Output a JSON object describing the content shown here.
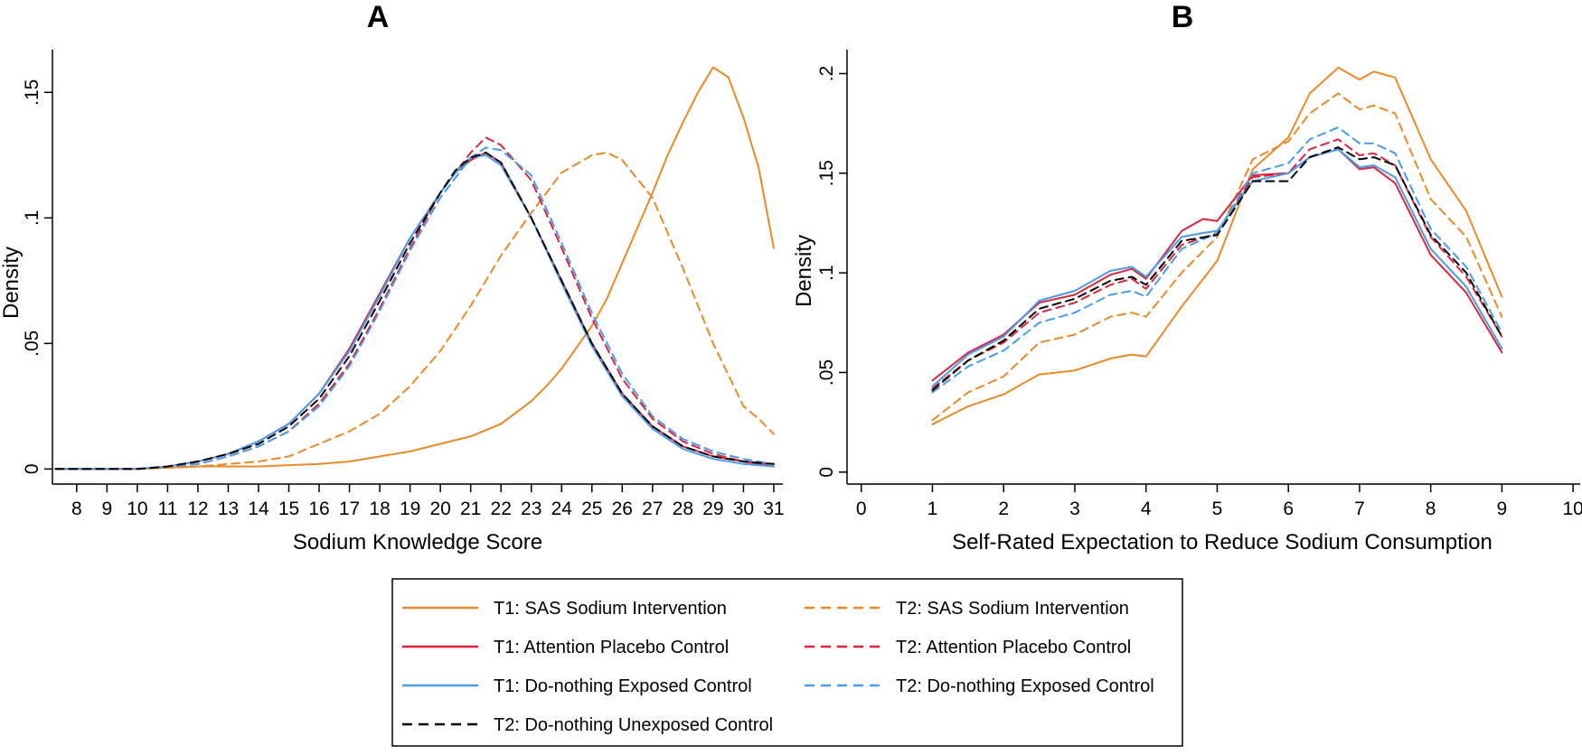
{
  "colors": {
    "sas": "#e8892a",
    "placebo": "#d7263d",
    "exposed": "#4a9be8",
    "unexposed": "#000000"
  },
  "legend": {
    "items": [
      {
        "label": "T1: SAS Sodium Intervention",
        "color": "#e8892a",
        "dash": "solid"
      },
      {
        "label": "T2: SAS Sodium Intervention",
        "color": "#e8892a",
        "dash": "dashed"
      },
      {
        "label": "T1: Attention Placebo Control",
        "color": "#d7263d",
        "dash": "solid"
      },
      {
        "label": "T2: Attention Placebo Control",
        "color": "#d7263d",
        "dash": "dashed"
      },
      {
        "label": "T1: Do-nothing Exposed Control",
        "color": "#4a9be8",
        "dash": "solid"
      },
      {
        "label": "T2: Do-nothing Exposed Control",
        "color": "#4a9be8",
        "dash": "dashed"
      },
      {
        "label": "T2: Do-nothing Unexposed Control",
        "color": "#000000",
        "dash": "dashed"
      }
    ]
  },
  "chart_data": [
    {
      "panel": "A",
      "type": "line",
      "title": "A",
      "xlabel": "Sodium Knowledge Score",
      "ylabel": "Density",
      "xlim": [
        7.2,
        31.3
      ],
      "ylim": [
        -0.006,
        0.167
      ],
      "xticks": [
        8,
        9,
        10,
        11,
        12,
        13,
        14,
        15,
        16,
        17,
        18,
        19,
        20,
        21,
        22,
        23,
        24,
        25,
        26,
        27,
        28,
        29,
        30,
        31
      ],
      "yticks": [
        0,
        0.05,
        0.1,
        0.15
      ],
      "ytick_labels": [
        "0",
        ".05",
        ".1",
        ".15"
      ],
      "series": [
        {
          "name": "T1: SAS Sodium Intervention",
          "color": "#e8892a",
          "dash": "solid",
          "x": [
            7.3,
            10,
            12,
            14,
            16,
            17,
            18,
            19,
            20,
            21,
            22,
            23,
            23.5,
            24,
            25,
            25.5,
            26,
            27,
            27.5,
            28,
            28.5,
            29,
            29.5,
            30,
            30.5,
            31
          ],
          "y": [
            0,
            0,
            0.001,
            0.001,
            0.002,
            0.003,
            0.005,
            0.007,
            0.01,
            0.013,
            0.018,
            0.027,
            0.033,
            0.04,
            0.057,
            0.068,
            0.082,
            0.11,
            0.125,
            0.138,
            0.15,
            0.16,
            0.156,
            0.14,
            0.12,
            0.088
          ]
        },
        {
          "name": "T2: SAS Sodium Intervention",
          "color": "#e8892a",
          "dash": "dashed",
          "x": [
            7.3,
            10,
            12,
            13,
            14,
            15,
            16,
            17,
            18,
            19,
            20,
            21,
            22,
            23,
            24,
            25,
            25.5,
            26,
            27,
            28,
            29,
            30,
            30.5,
            31
          ],
          "y": [
            0,
            0,
            0.001,
            0.002,
            0.003,
            0.005,
            0.01,
            0.015,
            0.022,
            0.033,
            0.047,
            0.065,
            0.085,
            0.102,
            0.118,
            0.125,
            0.126,
            0.123,
            0.108,
            0.08,
            0.05,
            0.025,
            0.02,
            0.014
          ]
        },
        {
          "name": "T1: Attention Placebo Control",
          "color": "#d7263d",
          "dash": "solid",
          "x": [
            7.3,
            10,
            11,
            12,
            13,
            14,
            15,
            16,
            17,
            18,
            19,
            20,
            20.5,
            21,
            21.5,
            22,
            23,
            24,
            25,
            26,
            27,
            28,
            29,
            30,
            31
          ],
          "y": [
            0,
            0,
            0.001,
            0.003,
            0.006,
            0.011,
            0.018,
            0.03,
            0.048,
            0.07,
            0.092,
            0.11,
            0.118,
            0.123,
            0.126,
            0.122,
            0.1,
            0.075,
            0.05,
            0.03,
            0.017,
            0.009,
            0.005,
            0.003,
            0.001
          ]
        },
        {
          "name": "T2: Attention Placebo Control",
          "color": "#d7263d",
          "dash": "dashed",
          "x": [
            7.3,
            10,
            11,
            12,
            13,
            14,
            15,
            16,
            17,
            18,
            19,
            20,
            21,
            21.5,
            22,
            23,
            24,
            25,
            26,
            27,
            28,
            29,
            30,
            31
          ],
          "y": [
            0,
            0,
            0.001,
            0.002,
            0.005,
            0.009,
            0.015,
            0.026,
            0.042,
            0.064,
            0.088,
            0.11,
            0.126,
            0.132,
            0.129,
            0.115,
            0.088,
            0.06,
            0.036,
            0.02,
            0.011,
            0.006,
            0.003,
            0.002
          ]
        },
        {
          "name": "T1: Do-nothing Exposed Control",
          "color": "#4a9be8",
          "dash": "solid",
          "x": [
            7.3,
            10,
            11,
            12,
            13,
            14,
            15,
            16,
            17,
            18,
            19,
            20,
            20.5,
            21,
            21.5,
            22,
            23,
            24,
            25,
            26,
            27,
            28,
            29,
            30,
            31
          ],
          "y": [
            0,
            0,
            0.001,
            0.003,
            0.006,
            0.011,
            0.018,
            0.03,
            0.047,
            0.069,
            0.092,
            0.11,
            0.118,
            0.124,
            0.125,
            0.121,
            0.1,
            0.074,
            0.049,
            0.029,
            0.016,
            0.008,
            0.004,
            0.002,
            0.001
          ]
        },
        {
          "name": "T2: Do-nothing Exposed Control",
          "color": "#4a9be8",
          "dash": "dashed",
          "x": [
            7.3,
            10,
            11,
            12,
            13,
            14,
            15,
            16,
            17,
            18,
            19,
            20,
            21,
            21.5,
            22,
            23,
            24,
            25,
            26,
            27,
            28,
            29,
            30,
            31
          ],
          "y": [
            0,
            0,
            0.001,
            0.002,
            0.005,
            0.009,
            0.015,
            0.025,
            0.041,
            0.063,
            0.087,
            0.108,
            0.124,
            0.128,
            0.127,
            0.117,
            0.09,
            0.062,
            0.038,
            0.021,
            0.012,
            0.007,
            0.004,
            0.002
          ]
        },
        {
          "name": "T2: Do-nothing Unexposed Control",
          "color": "#000000",
          "dash": "dashed",
          "x": [
            7.3,
            10,
            11,
            12,
            13,
            14,
            15,
            16,
            17,
            18,
            19,
            20,
            20.5,
            21,
            21.5,
            22,
            23,
            24,
            25,
            26,
            27,
            28,
            29,
            30,
            31
          ],
          "y": [
            0,
            0,
            0.001,
            0.003,
            0.006,
            0.01,
            0.017,
            0.028,
            0.045,
            0.067,
            0.09,
            0.11,
            0.119,
            0.124,
            0.126,
            0.122,
            0.1,
            0.075,
            0.05,
            0.03,
            0.017,
            0.009,
            0.005,
            0.003,
            0.002
          ]
        }
      ]
    },
    {
      "panel": "B",
      "type": "line",
      "title": "B",
      "xlabel": "Self-Rated Expectation to Reduce Sodium Consumption",
      "ylabel": "Density",
      "xlim": [
        -0.2,
        10.1
      ],
      "ylim": [
        -0.006,
        0.212
      ],
      "xticks": [
        0,
        1,
        2,
        3,
        4,
        5,
        6,
        7,
        8,
        9,
        10
      ],
      "yticks": [
        0,
        0.05,
        0.1,
        0.15,
        0.2
      ],
      "ytick_labels": [
        "0",
        ".05",
        ".1",
        ".15",
        ".2"
      ],
      "series": [
        {
          "name": "T1: SAS Sodium Intervention",
          "color": "#e8892a",
          "dash": "solid",
          "x": [
            1,
            1.5,
            2,
            2.5,
            3,
            3.5,
            3.8,
            4,
            4.5,
            5,
            5.5,
            6,
            6.3,
            6.7,
            7,
            7.2,
            7.5,
            8,
            8.5,
            9
          ],
          "y": [
            0.024,
            0.033,
            0.039,
            0.049,
            0.051,
            0.057,
            0.059,
            0.058,
            0.083,
            0.106,
            0.152,
            0.168,
            0.19,
            0.203,
            0.197,
            0.201,
            0.198,
            0.157,
            0.131,
            0.088
          ]
        },
        {
          "name": "T2: SAS Sodium Intervention",
          "color": "#e8892a",
          "dash": "dashed",
          "x": [
            1,
            1.5,
            2,
            2.5,
            3,
            3.5,
            3.8,
            4,
            4.5,
            5,
            5.5,
            6,
            6.3,
            6.7,
            7,
            7.2,
            7.5,
            8,
            8.5,
            9
          ],
          "y": [
            0.026,
            0.04,
            0.048,
            0.065,
            0.069,
            0.078,
            0.08,
            0.078,
            0.1,
            0.118,
            0.157,
            0.166,
            0.18,
            0.19,
            0.182,
            0.184,
            0.18,
            0.137,
            0.118,
            0.078
          ]
        },
        {
          "name": "T1: Attention Placebo Control",
          "color": "#d7263d",
          "dash": "solid",
          "x": [
            1,
            1.5,
            2,
            2.5,
            3,
            3.5,
            3.8,
            4,
            4.5,
            4.8,
            5,
            5.5,
            6,
            6.3,
            6.7,
            7,
            7.2,
            7.5,
            8,
            8.5,
            9
          ],
          "y": [
            0.046,
            0.06,
            0.069,
            0.085,
            0.089,
            0.099,
            0.102,
            0.097,
            0.121,
            0.127,
            0.126,
            0.149,
            0.15,
            0.158,
            0.162,
            0.152,
            0.153,
            0.145,
            0.109,
            0.09,
            0.06
          ]
        },
        {
          "name": "T2: Attention Placebo Control",
          "color": "#d7263d",
          "dash": "dashed",
          "x": [
            1,
            1.5,
            2,
            2.5,
            3,
            3.5,
            3.8,
            4,
            4.5,
            5,
            5.5,
            6,
            6.3,
            6.7,
            7,
            7.2,
            7.5,
            8,
            8.5,
            9
          ],
          "y": [
            0.042,
            0.056,
            0.065,
            0.08,
            0.085,
            0.094,
            0.097,
            0.092,
            0.114,
            0.12,
            0.148,
            0.15,
            0.162,
            0.167,
            0.159,
            0.16,
            0.154,
            0.118,
            0.098,
            0.068
          ]
        },
        {
          "name": "T1: Do-nothing Exposed Control",
          "color": "#4a9be8",
          "dash": "solid",
          "x": [
            1,
            1.5,
            2,
            2.5,
            3,
            3.5,
            3.8,
            4,
            4.5,
            4.8,
            5,
            5.5,
            6,
            6.3,
            6.7,
            7,
            7.2,
            7.5,
            8,
            8.5,
            9
          ],
          "y": [
            0.043,
            0.059,
            0.068,
            0.086,
            0.091,
            0.101,
            0.103,
            0.098,
            0.118,
            0.12,
            0.121,
            0.146,
            0.15,
            0.158,
            0.162,
            0.153,
            0.154,
            0.148,
            0.112,
            0.093,
            0.062
          ]
        },
        {
          "name": "T2: Do-nothing Exposed Control",
          "color": "#4a9be8",
          "dash": "dashed",
          "x": [
            1,
            1.5,
            2,
            2.5,
            3,
            3.5,
            3.8,
            4,
            4.5,
            5,
            5.5,
            6,
            6.3,
            6.7,
            7,
            7.2,
            7.5,
            8,
            8.5,
            9
          ],
          "y": [
            0.04,
            0.053,
            0.061,
            0.075,
            0.08,
            0.089,
            0.091,
            0.088,
            0.112,
            0.12,
            0.15,
            0.155,
            0.167,
            0.173,
            0.165,
            0.165,
            0.16,
            0.122,
            0.103,
            0.07
          ]
        },
        {
          "name": "T2: Do-nothing Unexposed Control",
          "color": "#000000",
          "dash": "dashed",
          "x": [
            1,
            1.5,
            2,
            2.5,
            3,
            3.5,
            3.8,
            4,
            4.5,
            5,
            5.5,
            6,
            6.3,
            6.7,
            7,
            7.2,
            7.5,
            8,
            8.5,
            9
          ],
          "y": [
            0.041,
            0.056,
            0.066,
            0.082,
            0.087,
            0.096,
            0.098,
            0.094,
            0.116,
            0.119,
            0.146,
            0.146,
            0.158,
            0.163,
            0.157,
            0.158,
            0.154,
            0.119,
            0.1,
            0.068
          ]
        }
      ]
    }
  ]
}
